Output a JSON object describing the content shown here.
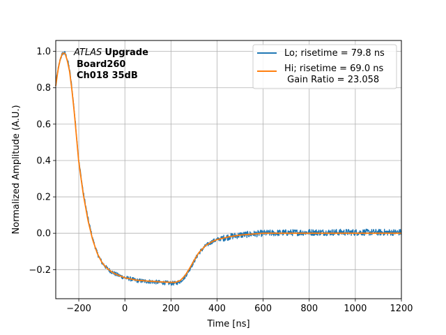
{
  "chart_data": {
    "type": "line",
    "xlabel": "Time [ns]",
    "ylabel": "Normalized Amplitude (A.U.)",
    "xlim": [
      -300,
      1200
    ],
    "ylim": [
      -0.36,
      1.06
    ],
    "xticks": [
      -200,
      0,
      200,
      400,
      600,
      800,
      1000,
      1200
    ],
    "yticks": [
      -0.2,
      0.0,
      0.2,
      0.4,
      0.6,
      0.8,
      1.0
    ],
    "xtick_labels": [
      "−200",
      "0",
      "200",
      "400",
      "600",
      "800",
      "1000",
      "1200"
    ],
    "ytick_labels": [
      "−0.2",
      "0.0",
      "0.2",
      "0.4",
      "0.6",
      "0.8",
      "1.0"
    ],
    "grid": true,
    "legend_position": "top-right",
    "annotation": {
      "italic": "ATLAS",
      "bold": "Upgrade",
      "line2": "Board260",
      "line3": "Ch018 35dB"
    },
    "series": [
      {
        "name": "Lo; risetime = 79.8 ns",
        "color": "#1f77b4",
        "noisy": true,
        "x": [
          -300,
          -290,
          -280,
          -270,
          -260,
          -250,
          -240,
          -230,
          -220,
          -210,
          -200,
          -180,
          -160,
          -140,
          -120,
          -100,
          -80,
          -60,
          -40,
          -20,
          0,
          20,
          50,
          100,
          150,
          200,
          220,
          240,
          260,
          280,
          300,
          320,
          350,
          380,
          400,
          450,
          500,
          550,
          600,
          700,
          800,
          900,
          1000,
          1100,
          1200
        ],
        "y": [
          0.82,
          0.9,
          0.96,
          0.99,
          0.99,
          0.96,
          0.9,
          0.8,
          0.68,
          0.54,
          0.4,
          0.22,
          0.08,
          -0.03,
          -0.11,
          -0.16,
          -0.19,
          -0.21,
          -0.225,
          -0.235,
          -0.245,
          -0.25,
          -0.26,
          -0.265,
          -0.27,
          -0.275,
          -0.275,
          -0.265,
          -0.24,
          -0.2,
          -0.155,
          -0.11,
          -0.07,
          -0.045,
          -0.035,
          -0.02,
          -0.01,
          -0.005,
          0.0,
          0.003,
          0.005,
          0.005,
          0.005,
          0.005,
          0.005
        ]
      },
      {
        "name": "Hi; risetime = 69.0 ns\n Gain Ratio = 23.058",
        "color": "#ff7f0e",
        "noisy": false,
        "x": [
          -300,
          -290,
          -280,
          -270,
          -260,
          -250,
          -240,
          -230,
          -220,
          -210,
          -200,
          -180,
          -160,
          -140,
          -120,
          -100,
          -80,
          -60,
          -40,
          -20,
          0,
          20,
          50,
          100,
          150,
          200,
          220,
          240,
          260,
          280,
          300,
          320,
          350,
          380,
          400,
          450,
          500,
          550,
          600,
          700,
          800,
          900,
          1000,
          1100,
          1200
        ],
        "y": [
          0.81,
          0.9,
          0.96,
          0.99,
          0.99,
          0.95,
          0.89,
          0.79,
          0.67,
          0.53,
          0.39,
          0.21,
          0.07,
          -0.035,
          -0.11,
          -0.16,
          -0.19,
          -0.21,
          -0.225,
          -0.235,
          -0.245,
          -0.25,
          -0.258,
          -0.263,
          -0.267,
          -0.27,
          -0.27,
          -0.26,
          -0.235,
          -0.195,
          -0.15,
          -0.108,
          -0.068,
          -0.045,
          -0.035,
          -0.02,
          -0.01,
          -0.005,
          0.0,
          0.0,
          0.0,
          0.0,
          0.0,
          0.0,
          0.0
        ]
      }
    ]
  }
}
